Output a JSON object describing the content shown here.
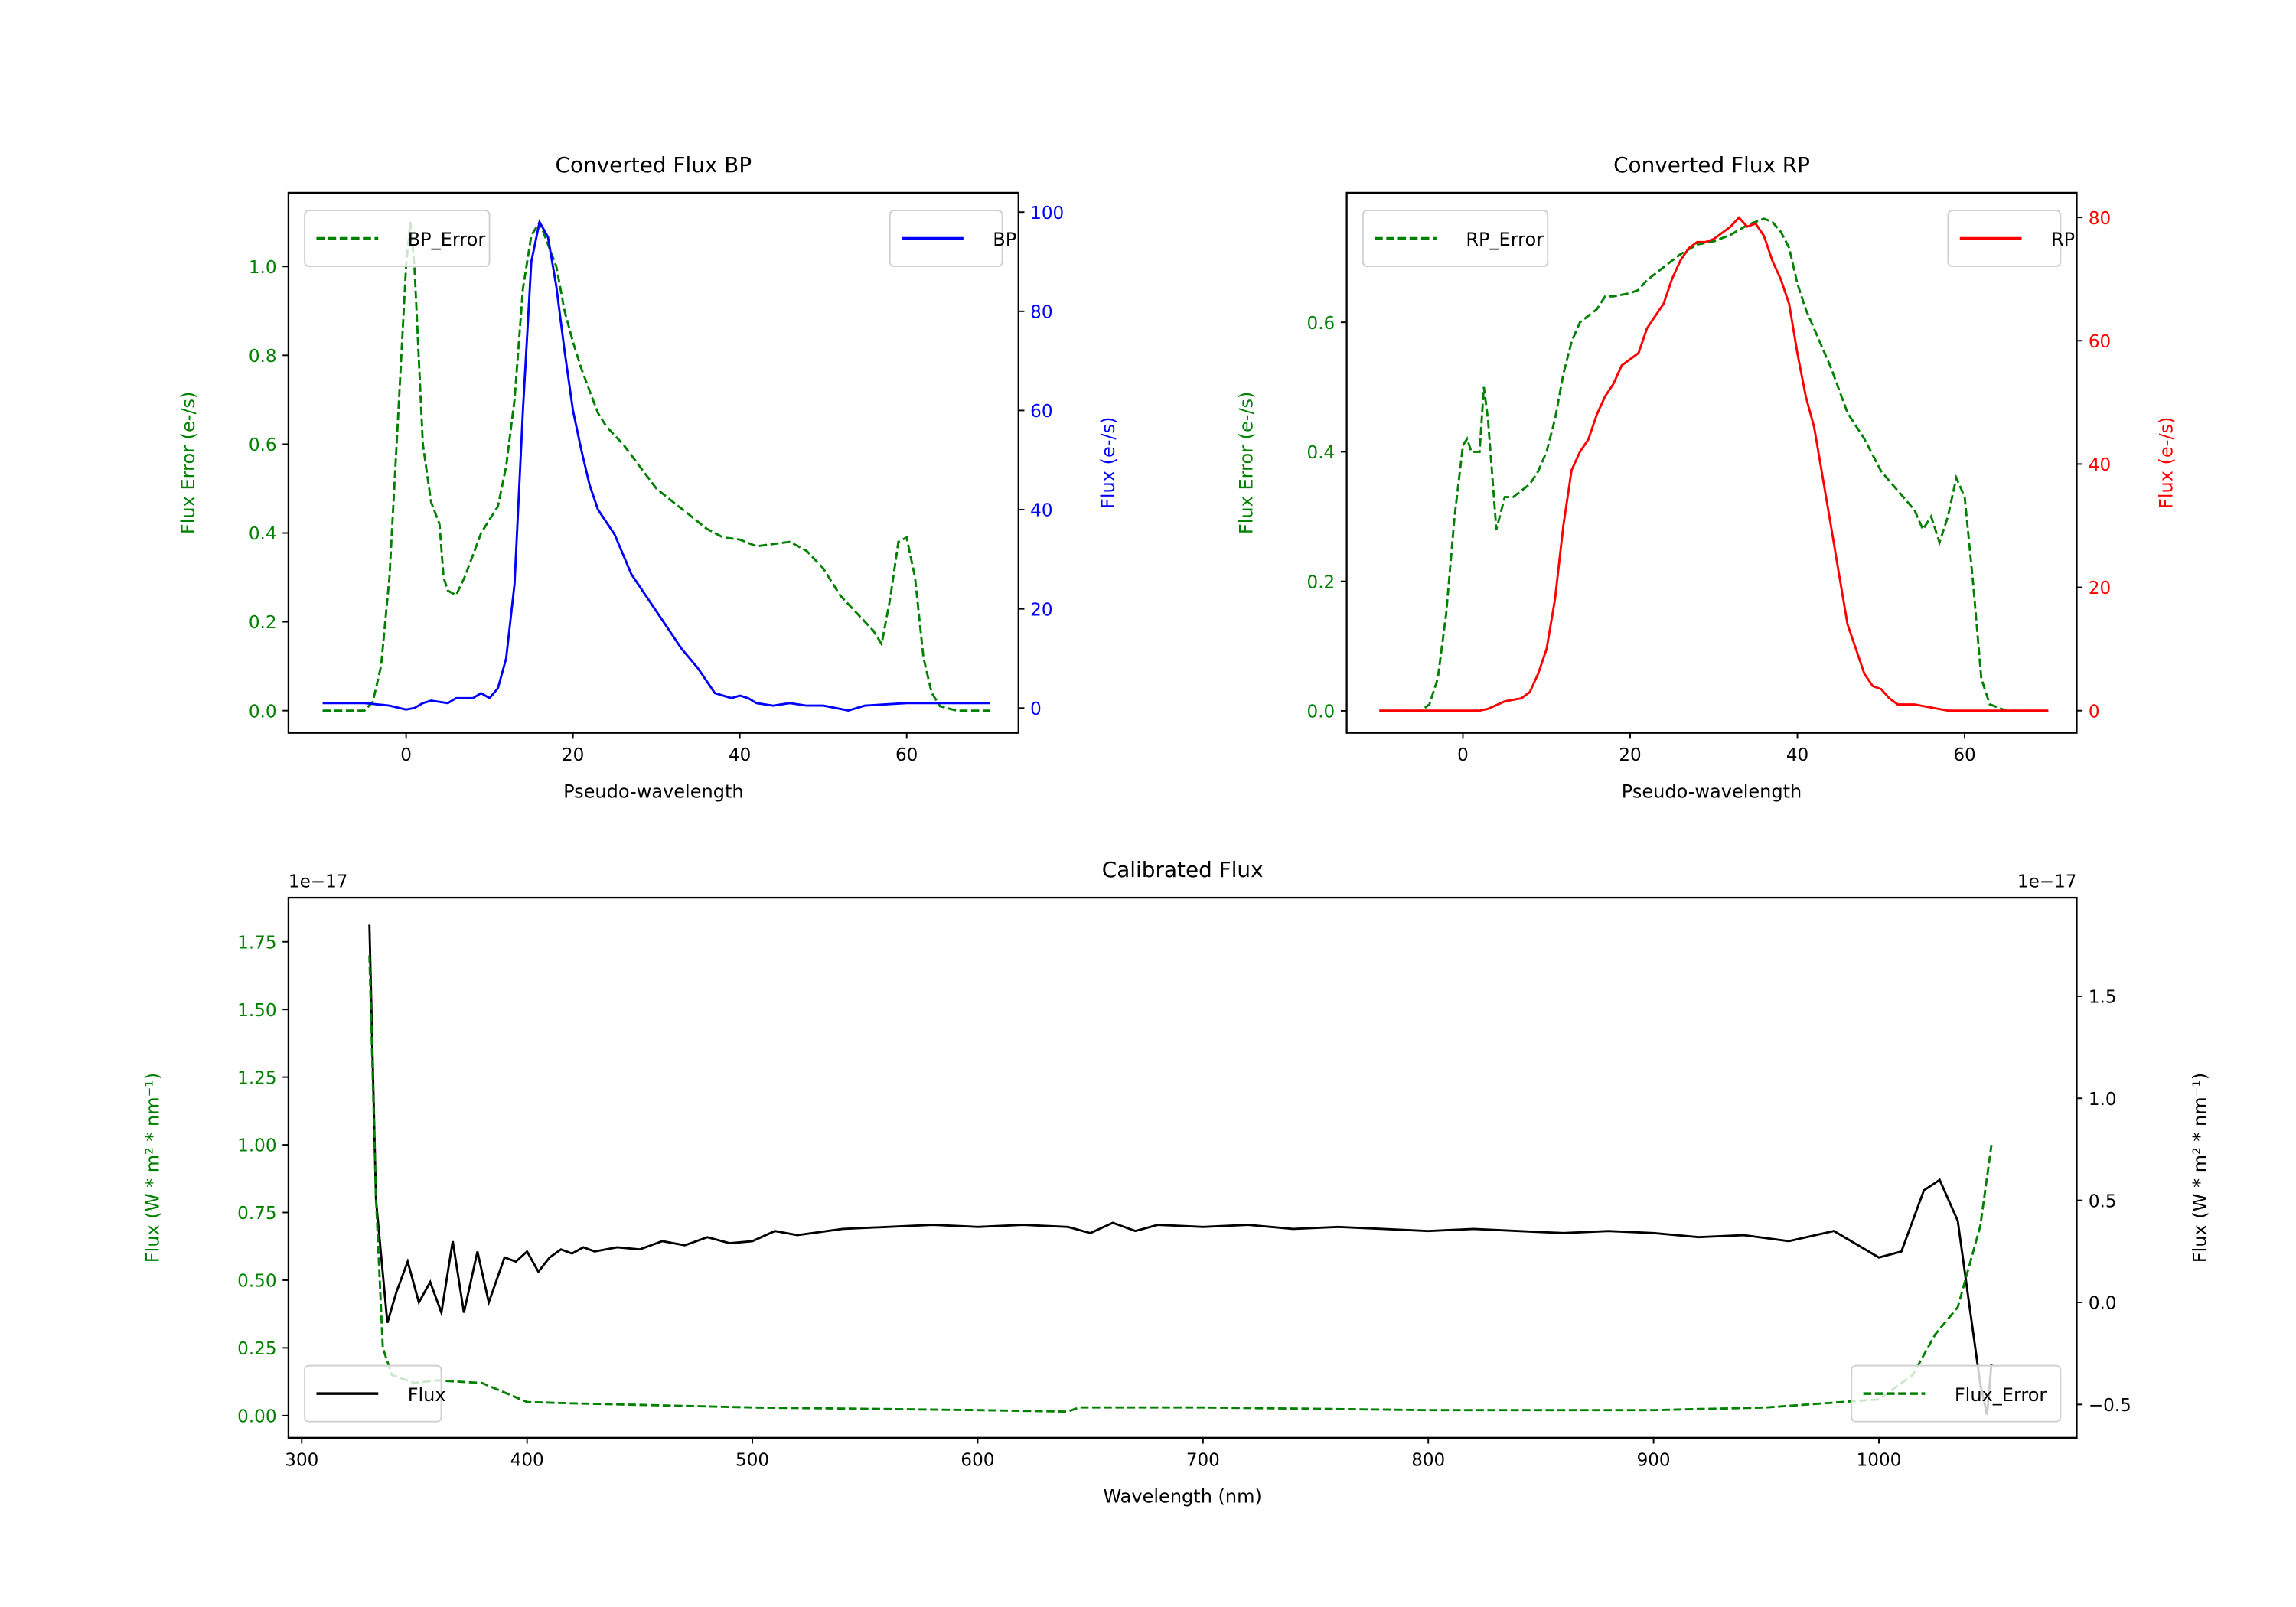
{
  "chart_data": [
    {
      "type": "line",
      "title": "Converted Flux BP",
      "xlabel": "Pseudo-wavelength",
      "ylabel": "Flux Error (e-/s)",
      "ylabel_right": "Flux (e-/s)",
      "xlim": [
        -14.1,
        73.4
      ],
      "ylim": [
        -0.05,
        1.166
      ],
      "ylim_right": [
        -5.0,
        103.9
      ],
      "xticks": [
        "0",
        "20",
        "40",
        "60"
      ],
      "yticks": [
        "0.0",
        "0.2",
        "0.4",
        "0.6",
        "0.8",
        "1.0"
      ],
      "yticks_right": [
        "0",
        "20",
        "40",
        "60",
        "80",
        "100"
      ],
      "colors": {
        "left": "#008000",
        "right": "#0000ff"
      },
      "series": [
        {
          "name": "BP_Error",
          "axis": "left",
          "style": "dashed",
          "color": "#008000",
          "legend": "upper left",
          "x": [
            -10,
            -5,
            -4,
            -3,
            -2,
            -1,
            0,
            0.5,
            1,
            2,
            3,
            4,
            4.5,
            5,
            6,
            7,
            8,
            9,
            10,
            11,
            12,
            13,
            14,
            15,
            16,
            17,
            18,
            19,
            20,
            21,
            22,
            23,
            24,
            25,
            26,
            28,
            30,
            32,
            34,
            36,
            38,
            40,
            42,
            44,
            46,
            48,
            50,
            52,
            54,
            56,
            57,
            58,
            59,
            60,
            61,
            62,
            63,
            64,
            66,
            70
          ],
          "y": [
            0,
            0,
            0.02,
            0.1,
            0.3,
            0.65,
            1.0,
            1.1,
            1.0,
            0.6,
            0.47,
            0.42,
            0.3,
            0.27,
            0.26,
            0.3,
            0.35,
            0.4,
            0.43,
            0.46,
            0.55,
            0.7,
            0.95,
            1.07,
            1.1,
            1.05,
            1.0,
            0.9,
            0.83,
            0.77,
            0.72,
            0.67,
            0.64,
            0.62,
            0.6,
            0.55,
            0.5,
            0.47,
            0.44,
            0.41,
            0.39,
            0.385,
            0.37,
            0.375,
            0.38,
            0.36,
            0.32,
            0.26,
            0.22,
            0.18,
            0.15,
            0.25,
            0.38,
            0.39,
            0.3,
            0.12,
            0.04,
            0.01,
            0,
            0
          ]
        },
        {
          "name": "BP",
          "axis": "right",
          "style": "solid",
          "color": "#0000ff",
          "legend": "upper right",
          "x": [
            -10,
            -5,
            -2,
            0,
            1,
            2,
            3,
            5,
            6,
            8,
            9,
            10,
            11,
            12,
            13,
            14,
            15,
            16,
            17,
            18,
            19,
            20,
            21,
            22,
            23,
            25,
            27,
            29,
            31,
            33,
            35,
            37,
            39,
            40,
            41,
            42,
            44,
            46,
            48,
            50,
            53,
            55,
            60,
            70
          ],
          "y": [
            1,
            1,
            0.5,
            -0.3,
            0,
            1,
            1.5,
            1,
            2,
            2,
            3,
            2,
            4,
            10,
            25,
            60,
            90,
            98,
            95,
            85,
            72,
            60,
            52,
            45,
            40,
            35,
            27,
            22,
            17,
            12,
            8,
            3,
            2,
            2.5,
            2,
            1,
            0.5,
            1,
            0.5,
            0.5,
            -0.5,
            0.5,
            1,
            1
          ]
        }
      ]
    },
    {
      "type": "line",
      "title": "Converted Flux RP",
      "xlabel": "Pseudo-wavelength",
      "ylabel": "Flux Error (e-/s)",
      "ylabel_right": "Flux (e-/s)",
      "xlim": [
        -13.9,
        73.4
      ],
      "ylim": [
        -0.034,
        0.8
      ],
      "ylim_right": [
        -3.6,
        84
      ],
      "xticks": [
        "0",
        "20",
        "40",
        "60"
      ],
      "yticks": [
        "0.0",
        "0.2",
        "0.4",
        "0.6"
      ],
      "yticks_right": [
        "0",
        "20",
        "40",
        "60",
        "80"
      ],
      "colors": {
        "left": "#008000",
        "right": "#ff0000"
      },
      "series": [
        {
          "name": "RP_Error",
          "axis": "left",
          "style": "dashed",
          "color": "#008000",
          "legend": "upper left",
          "x": [
            -10,
            -5,
            -4,
            -3,
            -2,
            -1,
            0,
            0.5,
            1,
            2,
            2.5,
            3,
            4,
            5,
            6,
            7,
            8,
            9,
            10,
            11,
            12,
            13,
            14,
            15,
            16,
            17,
            18,
            20,
            21,
            22,
            24,
            26,
            28,
            30,
            32,
            34,
            36,
            37,
            38,
            39,
            40,
            41,
            42,
            44,
            46,
            48,
            50,
            52,
            54,
            55,
            56,
            57,
            58,
            59,
            60,
            61,
            62,
            63,
            65,
            70
          ],
          "y": [
            0,
            0,
            0.01,
            0.05,
            0.15,
            0.3,
            0.41,
            0.42,
            0.4,
            0.4,
            0.5,
            0.45,
            0.28,
            0.33,
            0.33,
            0.34,
            0.35,
            0.37,
            0.4,
            0.45,
            0.52,
            0.57,
            0.6,
            0.61,
            0.62,
            0.64,
            0.64,
            0.645,
            0.65,
            0.665,
            0.685,
            0.705,
            0.72,
            0.725,
            0.735,
            0.75,
            0.76,
            0.755,
            0.74,
            0.715,
            0.66,
            0.62,
            0.59,
            0.53,
            0.46,
            0.42,
            0.37,
            0.34,
            0.31,
            0.28,
            0.3,
            0.26,
            0.3,
            0.36,
            0.33,
            0.2,
            0.05,
            0.01,
            0,
            0
          ]
        },
        {
          "name": "RP",
          "axis": "right",
          "style": "solid",
          "color": "#ff0000",
          "legend": "upper right",
          "x": [
            -10,
            2,
            3,
            5,
            7,
            8,
            9,
            10,
            11,
            12,
            13,
            14,
            15,
            16,
            17,
            18,
            19,
            20,
            21,
            22,
            23,
            24,
            25,
            26,
            27,
            28,
            29,
            30,
            31,
            32,
            33,
            34,
            35,
            36,
            37,
            38,
            39,
            40,
            41,
            42,
            43,
            44,
            45,
            46,
            47,
            48,
            49,
            50,
            51,
            52,
            54,
            56,
            58,
            70
          ],
          "y": [
            0,
            0,
            0.3,
            1.5,
            2,
            3,
            6,
            10,
            18,
            30,
            39,
            42,
            44,
            48,
            51,
            53,
            56,
            57,
            58,
            62,
            64,
            66,
            70,
            73,
            75,
            76,
            76,
            76.5,
            77.5,
            78.5,
            80,
            78.5,
            79,
            77,
            73,
            70,
            66,
            58,
            51,
            46,
            38,
            30,
            22,
            14,
            10,
            6,
            4,
            3.5,
            2,
            1,
            1,
            0.5,
            0,
            0
          ]
        }
      ]
    },
    {
      "type": "line",
      "title": "Calibrated Flux",
      "xlabel": "Wavelength (nm)",
      "ylabel": "Flux (W * m² * nm⁻¹)",
      "ylabel_right": "Flux (W * m² * nm⁻¹)",
      "offset_left": "1e−17",
      "offset_right": "1e−17",
      "xlim": [
        294.1,
        1087.8
      ],
      "ylim": [
        -0.082,
        1.913
      ],
      "ylim_right": [
        -0.663,
        1.983
      ],
      "xticks": [
        "300",
        "400",
        "500",
        "600",
        "700",
        "800",
        "900",
        "1000"
      ],
      "yticks": [
        "0.00",
        "0.25",
        "0.50",
        "0.75",
        "1.00",
        "1.25",
        "1.50",
        "1.75"
      ],
      "yticks_right": [
        "−0.5",
        "0.0",
        "0.5",
        "1.0",
        "1.5"
      ],
      "colors": {
        "left": "#008000",
        "right": "#000000"
      },
      "series": [
        {
          "name": "Flux",
          "axis": "right",
          "style": "solid",
          "color": "#000000",
          "legend": "lower left",
          "x": [
            330,
            333,
            338,
            342,
            347,
            352,
            357,
            362,
            367,
            372,
            378,
            383,
            390,
            395,
            400,
            405,
            410,
            415,
            420,
            425,
            430,
            440,
            450,
            460,
            470,
            480,
            490,
            500,
            510,
            520,
            540,
            560,
            580,
            600,
            620,
            640,
            650,
            660,
            670,
            680,
            700,
            720,
            740,
            760,
            780,
            800,
            820,
            840,
            860,
            880,
            900,
            920,
            940,
            960,
            980,
            1000,
            1010,
            1020,
            1027,
            1035,
            1040,
            1045,
            1048,
            1050
          ],
          "y": [
            1.85,
            0.5,
            -0.1,
            0.05,
            0.2,
            0.0,
            0.1,
            -0.05,
            0.3,
            -0.05,
            0.25,
            0.0,
            0.22,
            0.2,
            0.25,
            0.15,
            0.22,
            0.26,
            0.24,
            0.27,
            0.25,
            0.27,
            0.26,
            0.3,
            0.28,
            0.32,
            0.29,
            0.3,
            0.35,
            0.33,
            0.36,
            0.37,
            0.38,
            0.37,
            0.38,
            0.37,
            0.34,
            0.39,
            0.35,
            0.38,
            0.37,
            0.38,
            0.36,
            0.37,
            0.36,
            0.35,
            0.36,
            0.35,
            0.34,
            0.35,
            0.34,
            0.32,
            0.33,
            0.3,
            0.35,
            0.22,
            0.25,
            0.55,
            0.6,
            0.4,
            0.0,
            -0.4,
            -0.55,
            -0.3
          ]
        },
        {
          "name": "Flux_Error",
          "axis": "left",
          "style": "dashed",
          "color": "#008000",
          "legend": "lower right",
          "x": [
            330,
            333,
            336,
            340,
            350,
            360,
            380,
            400,
            420,
            500,
            600,
            640,
            645,
            700,
            800,
            900,
            950,
            1000,
            1015,
            1025,
            1035,
            1045,
            1050
          ],
          "y": [
            1.7,
            0.8,
            0.25,
            0.15,
            0.12,
            0.13,
            0.12,
            0.05,
            0.045,
            0.03,
            0.02,
            0.015,
            0.03,
            0.03,
            0.02,
            0.02,
            0.03,
            0.06,
            0.15,
            0.3,
            0.4,
            0.7,
            1.0
          ]
        }
      ]
    }
  ]
}
